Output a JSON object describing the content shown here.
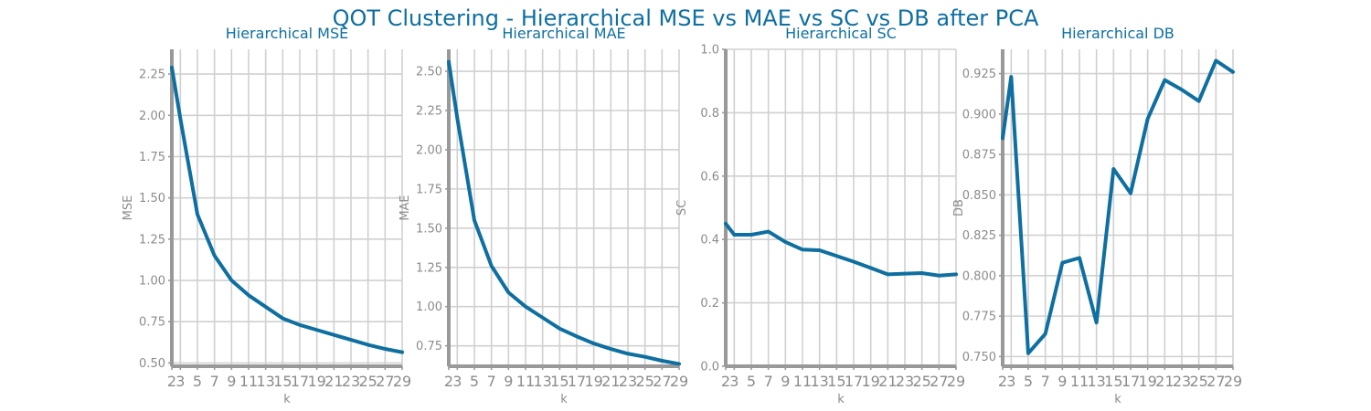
{
  "figure_title": "QOT Clustering - Hierarchical MSE vs MAE vs SC vs DB after PCA",
  "colors": {
    "series": "#0e6fa0",
    "title": "#0e6fa0",
    "grid": "#d0d0d0",
    "text": "#8c8c8c",
    "spine": "#999999"
  },
  "chart_data": [
    {
      "type": "line",
      "title": "Hierarchical MSE",
      "xlabel": "k",
      "ylabel": "MSE",
      "grid": true,
      "x": [
        2,
        3,
        5,
        7,
        9,
        11,
        13,
        15,
        17,
        19,
        21,
        23,
        25,
        27,
        29
      ],
      "xticks": [
        2,
        3,
        5,
        7,
        9,
        11,
        13,
        15,
        17,
        19,
        21,
        23,
        25,
        27,
        29
      ],
      "xlim": [
        2,
        29
      ],
      "ylim": [
        0.48,
        2.4
      ],
      "yticks": [
        0.5,
        0.75,
        1.0,
        1.25,
        1.5,
        1.75,
        2.0,
        2.25
      ],
      "ytick_labels": [
        "0.50",
        "0.75",
        "1.00",
        "1.25",
        "1.50",
        "1.75",
        "2.00",
        "2.25"
      ],
      "values": [
        2.29,
        1.98,
        1.4,
        1.15,
        1.0,
        0.91,
        0.84,
        0.77,
        0.73,
        0.7,
        0.67,
        0.64,
        0.61,
        0.585,
        0.565
      ]
    },
    {
      "type": "line",
      "title": "Hierarchical MAE",
      "xlabel": "k",
      "ylabel": "MAE",
      "grid": true,
      "x": [
        2,
        3,
        5,
        7,
        9,
        11,
        13,
        15,
        17,
        19,
        21,
        23,
        25,
        27,
        29
      ],
      "xticks": [
        2,
        3,
        5,
        7,
        9,
        11,
        13,
        15,
        17,
        19,
        21,
        23,
        25,
        27,
        29
      ],
      "xlim": [
        2,
        29
      ],
      "ylim": [
        0.62,
        2.64
      ],
      "yticks": [
        0.75,
        1.0,
        1.25,
        1.5,
        1.75,
        2.0,
        2.25,
        2.5
      ],
      "ytick_labels": [
        "0.75",
        "1.00",
        "1.25",
        "1.50",
        "1.75",
        "2.00",
        "2.25",
        "2.50"
      ],
      "values": [
        2.56,
        2.2,
        1.55,
        1.26,
        1.09,
        1.0,
        0.93,
        0.86,
        0.81,
        0.765,
        0.73,
        0.7,
        0.68,
        0.655,
        0.635
      ]
    },
    {
      "type": "line",
      "title": "Hierarchical SC",
      "xlabel": "k",
      "ylabel": "SC",
      "grid": true,
      "x": [
        2,
        3,
        5,
        7,
        9,
        11,
        13,
        15,
        17,
        19,
        21,
        23,
        25,
        27,
        29
      ],
      "xticks": [
        2,
        3,
        5,
        7,
        9,
        11,
        13,
        15,
        17,
        19,
        21,
        23,
        25,
        27,
        29
      ],
      "xlim": [
        2,
        29
      ],
      "ylim": [
        0,
        1
      ],
      "yticks": [
        0.0,
        0.2,
        0.4,
        0.6,
        0.8,
        1.0
      ],
      "ytick_labels": [
        "0.0",
        "0.2",
        "0.4",
        "0.6",
        "0.8",
        "1.0"
      ],
      "values": [
        0.45,
        0.415,
        0.415,
        0.425,
        0.392,
        0.368,
        0.366,
        0.348,
        0.33,
        0.31,
        0.29,
        0.292,
        0.294,
        0.286,
        0.29
      ]
    },
    {
      "type": "line",
      "title": "Hierarchical DB",
      "xlabel": "k",
      "ylabel": "DB",
      "grid": true,
      "x": [
        2,
        3,
        5,
        7,
        9,
        11,
        13,
        15,
        17,
        19,
        21,
        23,
        25,
        27,
        29
      ],
      "xticks": [
        2,
        3,
        5,
        7,
        9,
        11,
        13,
        15,
        17,
        19,
        21,
        23,
        25,
        27,
        29
      ],
      "xlim": [
        2,
        29
      ],
      "ylim": [
        0.744,
        0.94
      ],
      "yticks": [
        0.75,
        0.775,
        0.8,
        0.825,
        0.85,
        0.875,
        0.9,
        0.925
      ],
      "ytick_labels": [
        "0.750",
        "0.775",
        "0.800",
        "0.825",
        "0.850",
        "0.875",
        "0.900",
        "0.925"
      ],
      "values": [
        0.885,
        0.923,
        0.752,
        0.764,
        0.808,
        0.811,
        0.771,
        0.866,
        0.851,
        0.897,
        0.921,
        0.915,
        0.908,
        0.933,
        0.926
      ]
    }
  ]
}
